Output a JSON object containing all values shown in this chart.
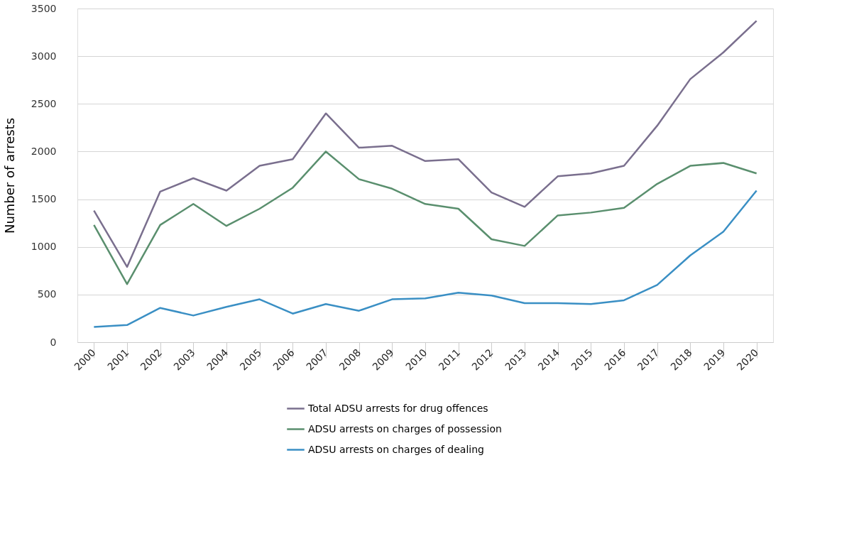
{
  "chart_data": {
    "type": "line",
    "ylabel": "Number of arrests",
    "categories": [
      "2000",
      "2001",
      "2002",
      "2003",
      "2004",
      "2005",
      "2006",
      "2007",
      "2008",
      "2009",
      "2010",
      "2011",
      "2012",
      "2013",
      "2014",
      "2015",
      "2016",
      "2017",
      "2018",
      "2019",
      "2020"
    ],
    "series": [
      {
        "name": "Total ADSU arrests for drug offences",
        "color": "#7a6f8e",
        "values": [
          1380,
          790,
          1580,
          1720,
          1590,
          1850,
          1920,
          2400,
          2040,
          2060,
          1900,
          1920,
          1570,
          1420,
          1740,
          1770,
          1850,
          2270,
          2760,
          3040,
          3370
        ]
      },
      {
        "name": "ADSU arrests on charges of possession",
        "color": "#5a8f6e",
        "values": [
          1230,
          610,
          1230,
          1450,
          1220,
          1400,
          1620,
          2000,
          1710,
          1610,
          1450,
          1400,
          1080,
          1010,
          1330,
          1360,
          1410,
          1660,
          1850,
          1880,
          1770
        ]
      },
      {
        "name": "ADSU arrests on charges of dealing",
        "color": "#3a8fc4",
        "values": [
          160,
          180,
          360,
          280,
          370,
          450,
          300,
          400,
          330,
          450,
          460,
          520,
          490,
          410,
          410,
          400,
          440,
          600,
          910,
          1160,
          1590
        ]
      }
    ],
    "ylim": [
      0,
      3500
    ],
    "yticks": [
      0,
      500,
      1000,
      1500,
      2000,
      2500,
      3000,
      3500
    ],
    "grid": "y",
    "legend": "bottom",
    "marker": "none",
    "line_style": "solid"
  }
}
